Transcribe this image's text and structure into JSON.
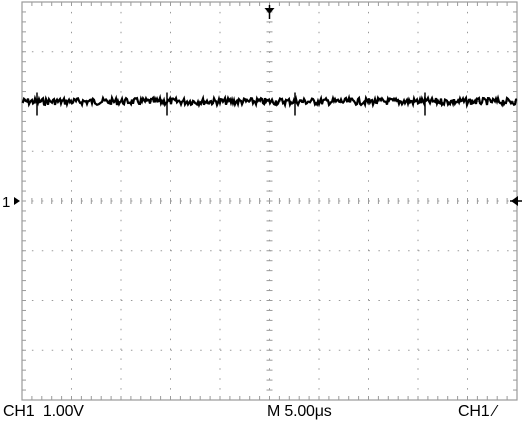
{
  "oscilloscope": {
    "channel_marker_label": "1",
    "grid": {
      "horizontal_divisions": 10,
      "vertical_divisions": 8,
      "minor_ticks_per_division": 5,
      "grid_on": true
    },
    "channel": {
      "name": "CH1",
      "scale_text": "1.00V",
      "volts_per_div": 1.0,
      "offset_divisions_above_ground": 2
    },
    "timebase": {
      "label": "M 5.00μs",
      "seconds_per_div": 5e-06
    },
    "trigger": {
      "source": "CH1",
      "slope_symbol": "∕",
      "slope": "rising"
    },
    "colors": {
      "background": "#ffffff",
      "grid": "#9a9a9a",
      "trace": "#000000"
    }
  },
  "chart_data": {
    "type": "line",
    "title": "",
    "xlabel": "",
    "ylabel": "",
    "description_units": "x in divisions (0-10), y in volts relative to CH1 ground",
    "xlim": [
      0,
      10
    ],
    "ylim": [
      -4,
      4
    ],
    "series": [
      {
        "values_volts": 2.0,
        "noise_volts_pp": 0.1
      }
    ],
    "grid": true
  }
}
